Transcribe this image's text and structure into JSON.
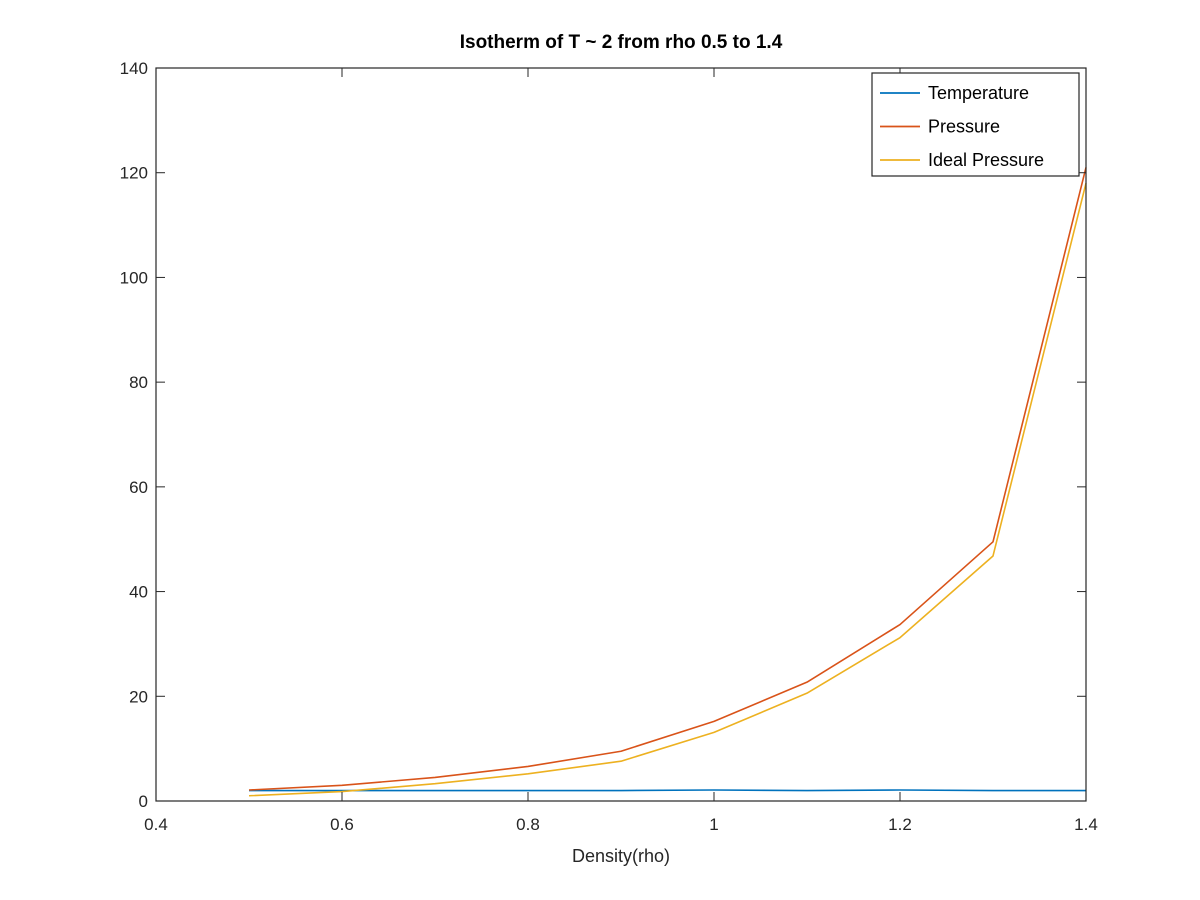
{
  "chart_data": {
    "type": "line",
    "title": "Isotherm of T ~ 2 from rho 0.5 to 1.4",
    "xlabel": "Density(rho)",
    "ylabel": "",
    "xlim": [
      0.4,
      1.4
    ],
    "ylim": [
      0,
      140
    ],
    "xticks": [
      0.4,
      0.6,
      0.8,
      1,
      1.2,
      1.4
    ],
    "xtick_labels": [
      "0.4",
      "0.6",
      "0.8",
      "1",
      "1.2",
      "1.4"
    ],
    "yticks": [
      0,
      20,
      40,
      60,
      80,
      100,
      120,
      140
    ],
    "ytick_labels": [
      "0",
      "20",
      "40",
      "60",
      "80",
      "100",
      "120",
      "140"
    ],
    "grid": false,
    "legend_position": "top-right",
    "x": [
      0.5,
      0.6,
      0.7,
      0.8,
      0.9,
      1.0,
      1.1,
      1.2,
      1.3,
      1.4
    ],
    "series": [
      {
        "name": "Temperature",
        "color": "#0072bd",
        "values": [
          2.0,
          2.0,
          2.0,
          2.0,
          2.0,
          2.1,
          2.0,
          2.1,
          2.0,
          2.0
        ]
      },
      {
        "name": "Pressure",
        "color": "#d95319",
        "values": [
          2.1,
          3.0,
          4.5,
          6.6,
          9.5,
          15.2,
          22.7,
          33.7,
          49.5,
          121.0
        ]
      },
      {
        "name": "Ideal Pressure",
        "color": "#edb120",
        "values": [
          1.0,
          1.8,
          3.3,
          5.2,
          7.6,
          13.1,
          20.6,
          31.2,
          46.8,
          118.0
        ]
      }
    ]
  }
}
